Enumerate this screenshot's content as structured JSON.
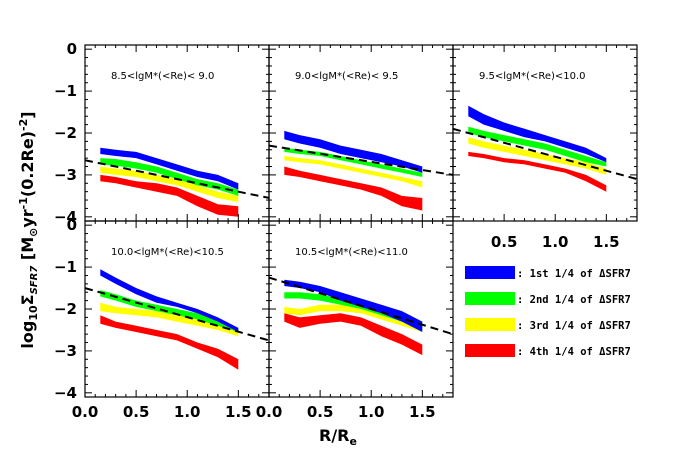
{
  "chart_data": {
    "type": "area",
    "xlabel": "R/R",
    "xlabel_sub": "e",
    "ylabel_parts": {
      "pre": "log",
      "sub1": "10",
      "sigma": "Σ",
      "sub2": "SFR7",
      "units": " [M",
      "sun": "⊙",
      "yr": "yr",
      "sup1": "-1",
      "mid": "(0.2Re)",
      "sup2": "-2",
      "end": "]"
    },
    "xlim": [
      0,
      1.8
    ],
    "ylim": [
      -4.1,
      0.1
    ],
    "x_ticks": [
      "0.0",
      "0.5",
      "1.0",
      "1.5"
    ],
    "x_ticks_lower_right": [
      "0.5",
      "1.0",
      "1.5"
    ],
    "y_ticks": [
      "0",
      "−1",
      "−2",
      "−3",
      "−4"
    ],
    "x_points": [
      0.15,
      0.3,
      0.5,
      0.7,
      0.9,
      1.1,
      1.3,
      1.5
    ],
    "series_colors": [
      "#0000ff",
      "#00ff00",
      "#ffff00",
      "#ff0000"
    ],
    "legend": [
      ": 1st 1/4 of ΔSFR7",
      ": 2nd 1/4 of ΔSFR7",
      ": 3rd 1/4 of ΔSFR7",
      ": 4th 1/4 of ΔSFR7"
    ],
    "panels": [
      {
        "label": "8.5<lgM*(<Re)< 9.0",
        "dashed": [
          [
            0.0,
            -2.65
          ],
          [
            1.8,
            -3.55
          ]
        ],
        "series": [
          {
            "lower": [
              -2.5,
              -2.55,
              -2.6,
              -2.75,
              -2.9,
              -3.05,
              -3.15,
              -3.35
            ],
            "upper": [
              -2.35,
              -2.4,
              -2.45,
              -2.6,
              -2.75,
              -2.9,
              -3.0,
              -3.2
            ]
          },
          {
            "lower": [
              -2.75,
              -2.78,
              -2.85,
              -2.95,
              -3.1,
              -3.25,
              -3.35,
              -3.5
            ],
            "upper": [
              -2.6,
              -2.62,
              -2.7,
              -2.8,
              -2.95,
              -3.1,
              -3.2,
              -3.35
            ]
          },
          {
            "lower": [
              -2.95,
              -3.0,
              -3.05,
              -3.15,
              -3.25,
              -3.4,
              -3.55,
              -3.65
            ],
            "upper": [
              -2.8,
              -2.85,
              -2.9,
              -3.0,
              -3.1,
              -3.25,
              -3.4,
              -3.5
            ]
          },
          {
            "lower": [
              -3.15,
              -3.2,
              -3.3,
              -3.4,
              -3.5,
              -3.75,
              -3.95,
              -4.0
            ],
            "upper": [
              -3.0,
              -3.05,
              -3.15,
              -3.2,
              -3.3,
              -3.5,
              -3.7,
              -3.75
            ]
          }
        ]
      },
      {
        "label": "9.0<lgM*(<Re)< 9.5",
        "dashed": [
          [
            0.0,
            -2.3
          ],
          [
            1.8,
            -3.0
          ]
        ],
        "series": [
          {
            "lower": [
              -2.15,
              -2.25,
              -2.35,
              -2.5,
              -2.6,
              -2.7,
              -2.8,
              -2.95
            ],
            "upper": [
              -1.95,
              -2.05,
              -2.15,
              -2.3,
              -2.4,
              -2.5,
              -2.65,
              -2.8
            ]
          },
          {
            "lower": [
              -2.45,
              -2.5,
              -2.55,
              -2.65,
              -2.75,
              -2.85,
              -2.95,
              -3.05
            ],
            "upper": [
              -2.35,
              -2.4,
              -2.45,
              -2.55,
              -2.65,
              -2.75,
              -2.85,
              -2.95
            ]
          },
          {
            "lower": [
              -2.65,
              -2.7,
              -2.75,
              -2.85,
              -2.95,
              -3.05,
              -3.15,
              -3.3
            ],
            "upper": [
              -2.55,
              -2.6,
              -2.65,
              -2.75,
              -2.85,
              -2.95,
              -3.05,
              -3.15
            ]
          },
          {
            "lower": [
              -3.0,
              -3.05,
              -3.15,
              -3.25,
              -3.35,
              -3.5,
              -3.75,
              -3.85
            ],
            "upper": [
              -2.8,
              -2.9,
              -3.0,
              -3.1,
              -3.2,
              -3.3,
              -3.5,
              -3.55
            ]
          }
        ]
      },
      {
        "label": "9.5<lgM*(<Re)<10.0",
        "dashed": [
          [
            0.0,
            -1.9
          ],
          [
            1.8,
            -3.1
          ]
        ],
        "series": [
          {
            "lower": [
              -1.6,
              -1.8,
              -1.95,
              -2.1,
              -2.2,
              -2.35,
              -2.5,
              -2.7
            ],
            "upper": [
              -1.35,
              -1.55,
              -1.75,
              -1.9,
              -2.05,
              -2.2,
              -2.35,
              -2.6
            ]
          },
          {
            "lower": [
              -2.0,
              -2.1,
              -2.2,
              -2.3,
              -2.4,
              -2.55,
              -2.7,
              -2.8
            ],
            "upper": [
              -1.85,
              -1.95,
              -2.05,
              -2.15,
              -2.25,
              -2.4,
              -2.55,
              -2.7
            ]
          },
          {
            "lower": [
              -2.25,
              -2.35,
              -2.45,
              -2.55,
              -2.65,
              -2.75,
              -2.85,
              -3.0
            ],
            "upper": [
              -2.1,
              -2.2,
              -2.3,
              -2.4,
              -2.5,
              -2.6,
              -2.7,
              -2.85
            ]
          },
          {
            "lower": [
              -2.55,
              -2.6,
              -2.7,
              -2.75,
              -2.85,
              -2.95,
              -3.15,
              -3.4
            ],
            "upper": [
              -2.45,
              -2.5,
              -2.6,
              -2.65,
              -2.75,
              -2.85,
              -3.0,
              -3.25
            ]
          }
        ]
      },
      {
        "label": "10.0<lgM*(<Re)<10.5",
        "dashed": [
          [
            0.0,
            -1.5
          ],
          [
            1.8,
            -2.75
          ]
        ],
        "series": [
          {
            "lower": [
              -1.2,
              -1.4,
              -1.65,
              -1.85,
              -1.95,
              -2.1,
              -2.3,
              -2.55
            ],
            "upper": [
              -1.05,
              -1.25,
              -1.5,
              -1.7,
              -1.85,
              -2.0,
              -2.2,
              -2.45
            ]
          },
          {
            "lower": [
              -1.7,
              -1.8,
              -1.95,
              -2.05,
              -2.15,
              -2.25,
              -2.4,
              -2.55
            ],
            "upper": [
              -1.55,
              -1.65,
              -1.8,
              -1.9,
              -2.0,
              -2.1,
              -2.25,
              -2.45
            ]
          },
          {
            "lower": [
              -2.05,
              -2.1,
              -2.15,
              -2.2,
              -2.3,
              -2.4,
              -2.5,
              -2.65
            ],
            "upper": [
              -1.85,
              -1.95,
              -2.0,
              -2.05,
              -2.15,
              -2.25,
              -2.35,
              -2.5
            ]
          },
          {
            "lower": [
              -2.35,
              -2.45,
              -2.55,
              -2.65,
              -2.75,
              -2.95,
              -3.15,
              -3.45
            ],
            "upper": [
              -2.15,
              -2.3,
              -2.4,
              -2.5,
              -2.6,
              -2.8,
              -2.95,
              -3.2
            ]
          }
        ]
      },
      {
        "label": "10.5<lgM*(<Re)<11.0",
        "dashed": [
          [
            0.0,
            -1.25
          ],
          [
            1.8,
            -2.6
          ]
        ],
        "series": [
          {
            "lower": [
              -1.45,
              -1.5,
              -1.6,
              -1.8,
              -1.95,
              -2.1,
              -2.3,
              -2.55
            ],
            "upper": [
              -1.3,
              -1.35,
              -1.45,
              -1.6,
              -1.75,
              -1.9,
              -2.05,
              -2.3
            ]
          },
          {
            "lower": [
              -1.75,
              -1.75,
              -1.8,
              -1.9,
              -2.0,
              -2.15,
              -2.3,
              -2.45
            ],
            "upper": [
              -1.6,
              -1.6,
              -1.65,
              -1.75,
              -1.85,
              -2.0,
              -2.15,
              -2.3
            ]
          },
          {
            "lower": [
              -2.1,
              -2.15,
              -2.05,
              -2.05,
              -2.1,
              -2.25,
              -2.4,
              -2.55
            ],
            "upper": [
              -1.95,
              -2.0,
              -1.9,
              -1.9,
              -1.95,
              -2.1,
              -2.25,
              -2.4
            ]
          },
          {
            "lower": [
              -2.3,
              -2.45,
              -2.35,
              -2.3,
              -2.4,
              -2.65,
              -2.85,
              -3.1
            ],
            "upper": [
              -2.1,
              -2.2,
              -2.15,
              -2.1,
              -2.2,
              -2.4,
              -2.6,
              -2.85
            ]
          }
        ]
      }
    ]
  }
}
